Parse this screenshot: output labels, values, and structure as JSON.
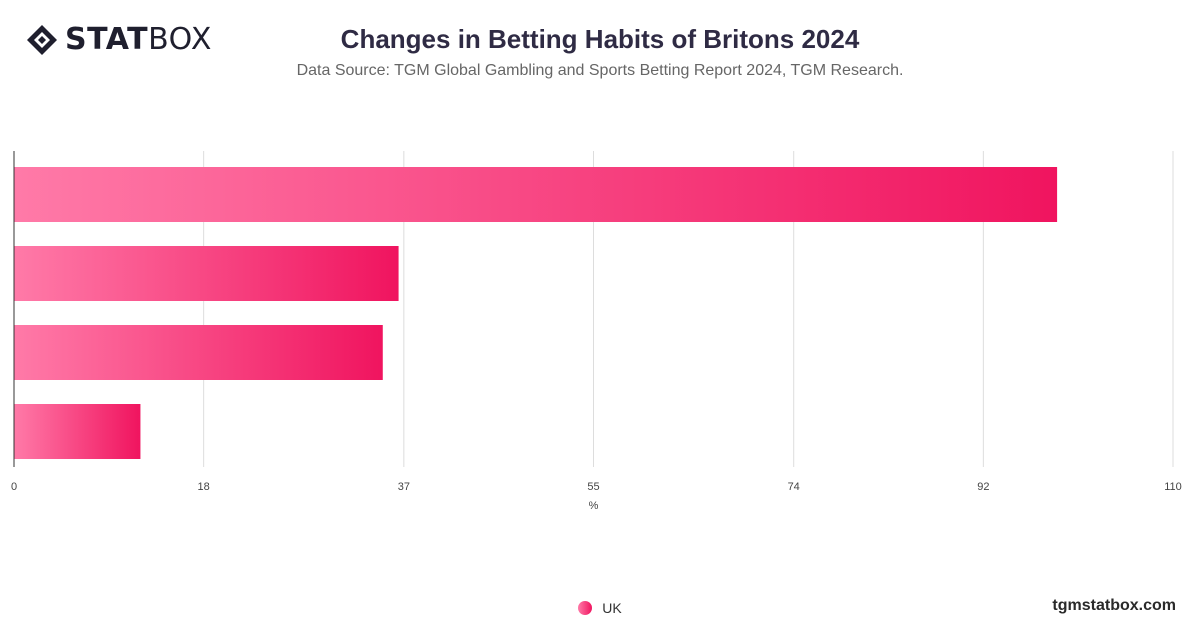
{
  "header": {
    "logo_bold": "STAT",
    "logo_light": "BOX",
    "title": "Changes in Betting Habits of Britons 2024",
    "subtitle": "Data Source: TGM Global Gambling and Sports Betting Report 2024, TGM Research."
  },
  "colors": {
    "bar_start": "#ff7aa8",
    "bar_end": "#f0145f",
    "grid": "#dddddd",
    "axis": "#333333"
  },
  "chart_data": {
    "type": "bar",
    "orientation": "horizontal",
    "categories": [
      "",
      "",
      "",
      ""
    ],
    "series": [
      {
        "name": "UK",
        "values": [
          99,
          36.5,
          35,
          12
        ]
      }
    ],
    "xlabel": "%",
    "ylabel": "",
    "xlim": [
      0,
      110
    ],
    "xticks": [
      "0",
      "18",
      "37",
      "55",
      "74",
      "92",
      "110"
    ],
    "grid": true,
    "legend_position": "bottom-center"
  },
  "legend": {
    "label": "UK"
  },
  "footer": {
    "site": "tgmstatbox.com"
  }
}
